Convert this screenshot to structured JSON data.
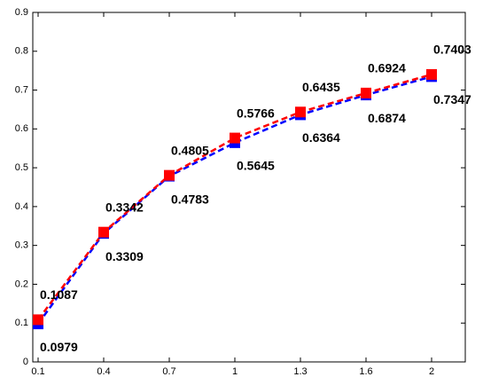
{
  "chart_data": {
    "type": "line",
    "categories": [
      "0.1",
      "0.4",
      "0.7",
      "1",
      "1.3",
      "1.6",
      "2"
    ],
    "series": [
      {
        "color": "#0000ff",
        "values": [
          0.0979,
          0.3309,
          0.4783,
          0.5645,
          0.6364,
          0.6874,
          0.7347
        ]
      },
      {
        "color": "#ff0000",
        "values": [
          0.1087,
          0.3342,
          0.4805,
          0.5766,
          0.6435,
          0.6924,
          0.7403
        ]
      }
    ],
    "ylim": [
      0,
      0.9
    ],
    "yticks": [
      0,
      0.1,
      0.2,
      0.3,
      0.4,
      0.5,
      0.6,
      0.7,
      0.8,
      0.9
    ]
  }
}
